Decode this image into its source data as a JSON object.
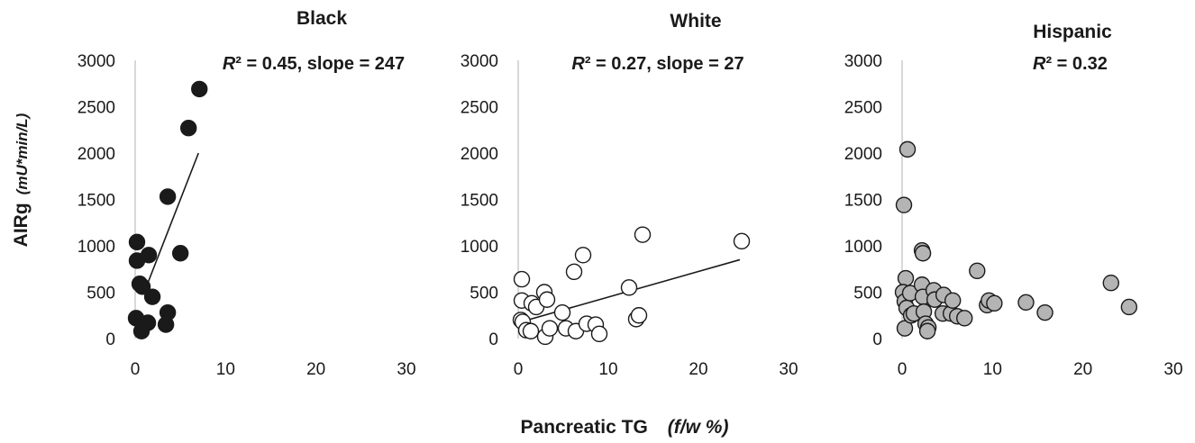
{
  "figure": {
    "ylabel": "AIRg",
    "ylabel_unit": "(mU*min/L)",
    "xlabel": "Pancreatic TG",
    "xlabel_unit": "(f/w %)"
  },
  "chart_data": [
    {
      "type": "scatter",
      "title": "Black",
      "annotation": "R² = 0.45,  slope = 247",
      "annotation_r2": "R",
      "annotation_rest": "² = 0.45,  slope = 247",
      "xlim": [
        0,
        30
      ],
      "ylim": [
        0,
        3000
      ],
      "xticks": [
        0,
        10,
        20,
        30
      ],
      "yticks": [
        0,
        500,
        1000,
        1500,
        2000,
        2500,
        3000
      ],
      "xtick_labels": [
        "0",
        "10",
        "20",
        "30"
      ],
      "ytick_labels": [
        "0",
        "500",
        "1000",
        "1500",
        "2000",
        "2500",
        "3000"
      ],
      "marker_fill": "#1a1a1a",
      "trendline": {
        "x": [
          1.0,
          7.0
        ],
        "y": [
          500,
          2000
        ]
      },
      "points": [
        {
          "x": 0.2,
          "y": 1040
        },
        {
          "x": 0.2,
          "y": 840
        },
        {
          "x": 0.1,
          "y": 220
        },
        {
          "x": 0.5,
          "y": 590
        },
        {
          "x": 0.8,
          "y": 560
        },
        {
          "x": 0.7,
          "y": 80
        },
        {
          "x": 0.9,
          "y": 140
        },
        {
          "x": 1.5,
          "y": 900
        },
        {
          "x": 1.4,
          "y": 170
        },
        {
          "x": 1.9,
          "y": 450
        },
        {
          "x": 3.6,
          "y": 1530
        },
        {
          "x": 3.6,
          "y": 280
        },
        {
          "x": 3.4,
          "y": 150
        },
        {
          "x": 5.0,
          "y": 920
        },
        {
          "x": 5.9,
          "y": 2270
        },
        {
          "x": 7.1,
          "y": 2690
        }
      ]
    },
    {
      "type": "scatter",
      "title": "White",
      "annotation": "R² = 0.27,   slope = 27",
      "annotation_r2": "R",
      "annotation_rest": "² = 0.27,   slope = 27",
      "xlim": [
        0,
        30
      ],
      "ylim": [
        0,
        3000
      ],
      "xticks": [
        0,
        10,
        20,
        30
      ],
      "yticks": [
        0,
        500,
        1000,
        1500,
        2000,
        2500,
        3000
      ],
      "xtick_labels": [
        "0",
        "10",
        "20",
        "30"
      ],
      "ytick_labels": [
        "0",
        "500",
        "1000",
        "1500",
        "2000",
        "2500",
        "3000"
      ],
      "marker_fill": "#ffffff",
      "trendline": {
        "x": [
          0.3,
          24.6
        ],
        "y": [
          180,
          850
        ]
      },
      "points": [
        {
          "x": 0.4,
          "y": 640
        },
        {
          "x": 0.4,
          "y": 410
        },
        {
          "x": 0.3,
          "y": 200
        },
        {
          "x": 0.5,
          "y": 180
        },
        {
          "x": 0.9,
          "y": 90
        },
        {
          "x": 1.4,
          "y": 80
        },
        {
          "x": 1.5,
          "y": 380
        },
        {
          "x": 2.0,
          "y": 340
        },
        {
          "x": 2.9,
          "y": 500
        },
        {
          "x": 3.2,
          "y": 420
        },
        {
          "x": 3.0,
          "y": 20
        },
        {
          "x": 3.5,
          "y": 110
        },
        {
          "x": 4.9,
          "y": 280
        },
        {
          "x": 5.3,
          "y": 110
        },
        {
          "x": 6.2,
          "y": 720
        },
        {
          "x": 6.4,
          "y": 80
        },
        {
          "x": 7.2,
          "y": 900
        },
        {
          "x": 7.6,
          "y": 160
        },
        {
          "x": 8.6,
          "y": 150
        },
        {
          "x": 9.0,
          "y": 50
        },
        {
          "x": 12.3,
          "y": 550
        },
        {
          "x": 13.1,
          "y": 210
        },
        {
          "x": 13.4,
          "y": 250
        },
        {
          "x": 13.8,
          "y": 1120
        },
        {
          "x": 24.8,
          "y": 1050
        }
      ]
    },
    {
      "type": "scatter",
      "title": "Hispanic",
      "annotation": "R² = 0.32",
      "annotation_r2": "R",
      "annotation_rest": "² = 0.32",
      "xlim": [
        0,
        30
      ],
      "ylim": [
        0,
        3000
      ],
      "xticks": [
        0,
        10,
        20,
        30
      ],
      "yticks": [
        0,
        500,
        1000,
        1500,
        2000,
        2500,
        3000
      ],
      "xtick_labels": [
        "0",
        "10",
        "20",
        "30"
      ],
      "ytick_labels": [
        "0",
        "500",
        "1000",
        "1500",
        "2000",
        "2500",
        "3000"
      ],
      "marker_fill": "#b4b4b4",
      "trendline": null,
      "points": [
        {
          "x": 0.2,
          "y": 1440
        },
        {
          "x": 0.6,
          "y": 2040
        },
        {
          "x": 0.4,
          "y": 650
        },
        {
          "x": 0.1,
          "y": 500
        },
        {
          "x": 0.3,
          "y": 400
        },
        {
          "x": 0.5,
          "y": 330
        },
        {
          "x": 0.3,
          "y": 110
        },
        {
          "x": 0.9,
          "y": 490
        },
        {
          "x": 1.0,
          "y": 250
        },
        {
          "x": 1.3,
          "y": 270
        },
        {
          "x": 2.2,
          "y": 950
        },
        {
          "x": 2.3,
          "y": 920
        },
        {
          "x": 2.2,
          "y": 580
        },
        {
          "x": 2.3,
          "y": 450
        },
        {
          "x": 2.4,
          "y": 290
        },
        {
          "x": 2.6,
          "y": 160
        },
        {
          "x": 2.9,
          "y": 120
        },
        {
          "x": 2.8,
          "y": 80
        },
        {
          "x": 3.5,
          "y": 520
        },
        {
          "x": 3.6,
          "y": 420
        },
        {
          "x": 4.6,
          "y": 470
        },
        {
          "x": 4.5,
          "y": 270
        },
        {
          "x": 5.4,
          "y": 270
        },
        {
          "x": 5.6,
          "y": 410
        },
        {
          "x": 6.1,
          "y": 240
        },
        {
          "x": 6.9,
          "y": 220
        },
        {
          "x": 8.3,
          "y": 730
        },
        {
          "x": 9.4,
          "y": 360
        },
        {
          "x": 9.6,
          "y": 410
        },
        {
          "x": 10.2,
          "y": 380
        },
        {
          "x": 13.7,
          "y": 390
        },
        {
          "x": 15.8,
          "y": 280
        },
        {
          "x": 23.1,
          "y": 600
        },
        {
          "x": 25.1,
          "y": 340
        }
      ]
    }
  ]
}
